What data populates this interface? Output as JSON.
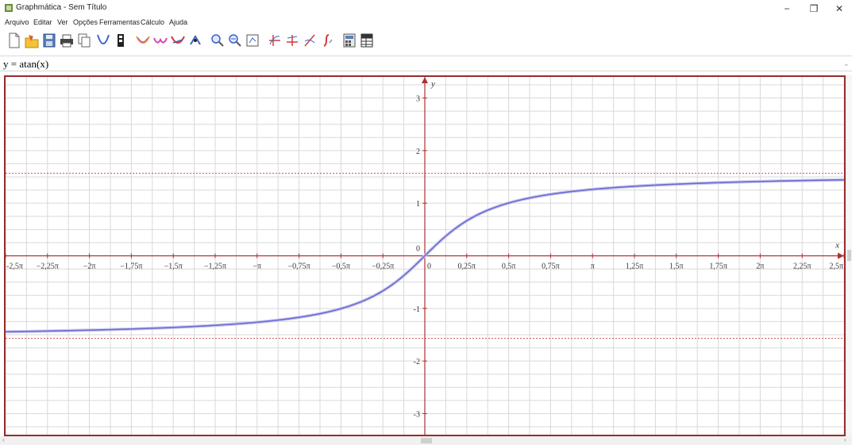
{
  "window": {
    "title": "Graphmática - Sem Título",
    "minimize": "−",
    "maximize": "❐",
    "close": "✕"
  },
  "menu": {
    "items": [
      "Arquivo",
      "Editar",
      "Ver",
      "Opções",
      "Ferramentas",
      "Cálculo",
      "Ajuda"
    ]
  },
  "toolbar": {
    "icons": [
      "new-file-icon",
      "open-folder-icon",
      "save-icon",
      "print-icon",
      "copy-icon",
      "parabola-icon",
      "table-icon",
      "curve-yellow-icon",
      "curve-pink-icon",
      "curve-red-icon",
      "pointer-tool-icon",
      "zoom-in-icon",
      "zoom-out-icon",
      "zoom-box-icon",
      "grid-tool-icon",
      "tangent-tool-icon",
      "derivative-tool-icon",
      "integral-tool-icon",
      "calculator-icon",
      "data-table-icon"
    ]
  },
  "formula": {
    "value": "y = atan(x)"
  },
  "scroll": {
    "left_arrow": "‹",
    "right_arrow": "›",
    "down_arrow": "⌄"
  },
  "chart_data": {
    "type": "line",
    "function": "y = atan(x)",
    "xlim": [
      -7.854,
      7.854
    ],
    "ylim": [
      -3.4,
      3.4
    ],
    "x_axis_label": "x",
    "y_axis_label": "y",
    "x_tick_labels": [
      "-2,5π",
      "−2,25π",
      "−2π",
      "−1,75π",
      "−1,5π",
      "−1,25π",
      "−π",
      "−0,75π",
      "−0,5π",
      "−0,25π",
      "0",
      "0,25π",
      "0,5π",
      "0,75π",
      "π",
      "1,25π",
      "1,5π",
      "1,75π",
      "2π",
      "2,25π",
      "2,5π"
    ],
    "x_tick_values": [
      -7.854,
      -7.069,
      -6.283,
      -5.498,
      -4.712,
      -3.927,
      -3.142,
      -2.356,
      -1.571,
      -0.785,
      0,
      0.785,
      1.571,
      2.356,
      3.142,
      3.927,
      4.712,
      5.498,
      6.283,
      7.069,
      7.854
    ],
    "y_tick_labels": [
      "3",
      "2",
      "1",
      "0",
      "-1",
      "-2",
      "-3"
    ],
    "y_tick_values": [
      3,
      2,
      1,
      0,
      -1,
      -2,
      -3
    ],
    "asymptotes": [
      1.5708,
      -1.5708
    ],
    "grid": true,
    "curve_color": "#6a6ad0",
    "axis_color": "#b03030",
    "asymptote_color": "#d05050",
    "grid_color": "#d9d9d9"
  }
}
